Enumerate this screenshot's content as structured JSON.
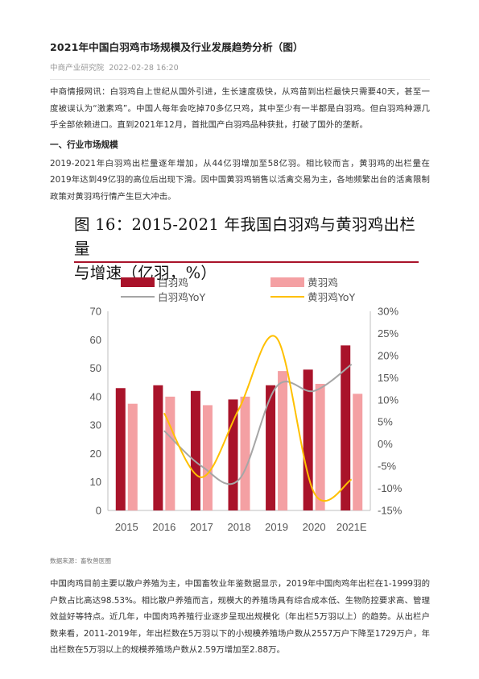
{
  "article": {
    "title": "2021年中国白羽鸡市场规模及行业发展趋势分析（图）",
    "source_name": "中商产业研究院",
    "date": "2022-02-28 16:20",
    "paragraph1": "中商情报网讯：白羽鸡自上世纪从国外引进，生长速度极快，从鸡苗到出栏最快只需要40天，甚至一度被误认为“激素鸡”。中国人每年会吃掉70多亿只鸡，其中至少有一半都是白羽鸡。但白羽鸡种源几乎全部依赖进口。直到2021年12月，首批国产白羽鸡品种获批，打破了国外的垄断。",
    "section_heading": "一、行业市场规模",
    "paragraph2": "2019-2021年白羽鸡出栏量逐年增加，从44亿羽增加至58亿羽。相比较而言，黄羽鸡的出栏量在2019年达到49亿羽的高位后出现下滑。因中国黄羽鸡销售以活禽交易为主，各地频繁出台的活禽限制政策对黄羽鸡行情产生巨大冲击。",
    "figure_source": "数据来源：畜牧兽医圈",
    "paragraph3": "中国肉鸡目前主要以散户养殖为主，中国畜牧业年鉴数据显示，2019年中国肉鸡年出栏在1-1999羽的户数占比高达98.53%。相比散户养殖而言，规模大的养殖场具有综合成本低、生物防控要求高、管理效益好等特点。近几年，中国肉鸡养殖行业逐步呈现出规模化（年出栏5万羽以上）的趋势。从出栏户数来看，2011-2019年，年出栏数在5万羽以下的小规模养殖场户数从2557万户下降至1729万户，年出栏数在5万羽以上的规模养殖场户数从2.59万增加至2.88万。"
  },
  "colors": {
    "white_bar": "#a9132a",
    "yellow_bar": "#f4a0a3",
    "white_yoy": "#a6a6a6",
    "yellow_yoy": "#ffc000",
    "title_rule": "#a9132a",
    "axis_text": "#555555"
  },
  "chart_data": {
    "type": "bar",
    "title_line1": "图 16：2015-2021 年我国白羽鸡与黄羽鸡出栏量",
    "title_line2": "与增速（亿羽，%）",
    "categories": [
      "2015",
      "2016",
      "2017",
      "2018",
      "2019",
      "2020",
      "2021E"
    ],
    "series": [
      {
        "name": "白羽鸡",
        "kind": "bar",
        "axis": "left",
        "values": [
          43,
          44,
          42,
          39,
          44,
          49.5,
          58
        ]
      },
      {
        "name": "黄羽鸡",
        "kind": "bar",
        "axis": "left",
        "values": [
          37.5,
          40,
          37,
          40,
          49,
          44.5,
          41
        ]
      },
      {
        "name": "白羽鸡YoY",
        "kind": "line",
        "axis": "right",
        "values": [
          null,
          3,
          -5,
          -8,
          13,
          12,
          18
        ]
      },
      {
        "name": "黄羽鸡YoY",
        "kind": "line",
        "axis": "right",
        "values": [
          null,
          7,
          -7.5,
          8,
          24,
          -11,
          -8
        ]
      }
    ],
    "left_ylim": [
      0,
      70
    ],
    "left_ticks": [
      "0",
      "10",
      "20",
      "30",
      "40",
      "50",
      "60",
      "70"
    ],
    "right_ylim": [
      -15,
      30
    ],
    "right_ticks": [
      "-15%",
      "-10%",
      "-5%",
      "0%",
      "5%",
      "10%",
      "15%",
      "20%",
      "25%",
      "30%"
    ],
    "grid": false,
    "legend_position": "top"
  }
}
